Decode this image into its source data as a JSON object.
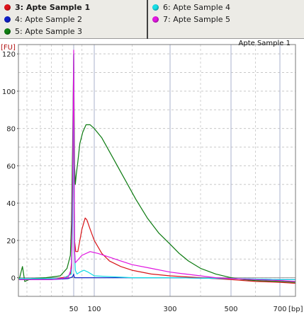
{
  "legend": {
    "items": [
      {
        "label": "3: Apte Sample 1",
        "color": "#e0141a",
        "selected": true
      },
      {
        "label": "4: Apte Sample 2",
        "color": "#1020c8",
        "selected": false
      },
      {
        "label": "5: Apte Sample 3",
        "color": "#0f7f12",
        "selected": false
      },
      {
        "label": "6: Apte Sample 4",
        "color": "#18e0e8",
        "selected": false
      },
      {
        "label": "7: Apte Sample 5",
        "color": "#e418e4",
        "selected": false
      }
    ]
  },
  "chart_data": {
    "type": "line",
    "title": "Apte Sample 1",
    "ylabel": "[FU]",
    "xlabel": "[bp]",
    "ylim": [
      -10,
      125
    ],
    "yticks": [
      0,
      20,
      40,
      60,
      80,
      100,
      120
    ],
    "xticks": [
      {
        "label": "50",
        "x": 50
      },
      {
        "label": "100",
        "x": 100
      },
      {
        "label": "300",
        "x": 300
      },
      {
        "label": "500",
        "x": 500
      },
      {
        "label": "700",
        "x": 700
      }
    ],
    "grid": true,
    "series": [
      {
        "name": "3: Apte Sample 1",
        "color": "#d81418",
        "points": [
          [
            1,
            -1
          ],
          [
            20,
            -1
          ],
          [
            35,
            -0.5
          ],
          [
            44,
            0.5
          ],
          [
            47,
            2
          ],
          [
            48,
            8
          ],
          [
            49,
            40
          ],
          [
            50,
            95
          ],
          [
            51,
            60
          ],
          [
            52,
            20
          ],
          [
            55,
            14
          ],
          [
            60,
            14
          ],
          [
            70,
            26
          ],
          [
            78,
            32
          ],
          [
            82,
            31
          ],
          [
            90,
            26
          ],
          [
            100,
            20
          ],
          [
            120,
            13
          ],
          [
            140,
            9
          ],
          [
            170,
            6
          ],
          [
            200,
            4
          ],
          [
            250,
            2
          ],
          [
            300,
            1
          ],
          [
            400,
            0
          ],
          [
            500,
            -1
          ],
          [
            600,
            -2
          ],
          [
            700,
            -2.5
          ],
          [
            775,
            -3
          ]
        ]
      },
      {
        "name": "4: Apte Sample 2",
        "color": "#1428c8",
        "points": [
          [
            1,
            -1
          ],
          [
            30,
            -1
          ],
          [
            45,
            -0.5
          ],
          [
            49,
            0.5
          ],
          [
            50,
            2
          ],
          [
            51,
            0.5
          ],
          [
            53,
            0
          ],
          [
            60,
            0
          ],
          [
            100,
            0
          ],
          [
            300,
            0
          ],
          [
            500,
            -0.5
          ],
          [
            700,
            -1
          ],
          [
            775,
            -1
          ]
        ]
      },
      {
        "name": "5: Apte Sample 3",
        "color": "#0c7a10",
        "points": [
          [
            1,
            -1
          ],
          [
            4,
            6
          ],
          [
            6,
            -2
          ],
          [
            12,
            -0.5
          ],
          [
            25,
            0
          ],
          [
            38,
            1
          ],
          [
            44,
            5
          ],
          [
            47,
            12
          ],
          [
            48,
            30
          ],
          [
            49,
            70
          ],
          [
            50,
            120
          ],
          [
            51,
            90
          ],
          [
            52,
            60
          ],
          [
            54,
            50
          ],
          [
            56,
            55
          ],
          [
            60,
            62
          ],
          [
            65,
            72
          ],
          [
            72,
            78
          ],
          [
            80,
            82
          ],
          [
            90,
            82
          ],
          [
            100,
            80
          ],
          [
            120,
            75
          ],
          [
            150,
            64
          ],
          [
            180,
            53
          ],
          [
            210,
            42
          ],
          [
            240,
            32
          ],
          [
            270,
            24
          ],
          [
            300,
            18
          ],
          [
            330,
            13
          ],
          [
            360,
            9
          ],
          [
            400,
            5
          ],
          [
            450,
            2
          ],
          [
            500,
            0
          ],
          [
            550,
            -1
          ],
          [
            600,
            -1.5
          ],
          [
            700,
            -2
          ],
          [
            775,
            -2.5
          ]
        ]
      },
      {
        "name": "6: Apte Sample 4",
        "color": "#10dce4",
        "points": [
          [
            1,
            -0.5
          ],
          [
            40,
            -0.5
          ],
          [
            48,
            2
          ],
          [
            49,
            30
          ],
          [
            50,
            120
          ],
          [
            51,
            60
          ],
          [
            52,
            15
          ],
          [
            54,
            4
          ],
          [
            58,
            2
          ],
          [
            65,
            3
          ],
          [
            75,
            4
          ],
          [
            85,
            3
          ],
          [
            100,
            1
          ],
          [
            150,
            0.5
          ],
          [
            200,
            0
          ],
          [
            300,
            0
          ],
          [
            500,
            -0.5
          ],
          [
            700,
            -1
          ],
          [
            775,
            -1
          ]
        ]
      },
      {
        "name": "7: Apte Sample 5",
        "color": "#e014e0",
        "points": [
          [
            1,
            -1
          ],
          [
            30,
            -1
          ],
          [
            45,
            0
          ],
          [
            48,
            5
          ],
          [
            49,
            50
          ],
          [
            50,
            122
          ],
          [
            51,
            70
          ],
          [
            52,
            15
          ],
          [
            54,
            8
          ],
          [
            58,
            9
          ],
          [
            70,
            12
          ],
          [
            90,
            14
          ],
          [
            110,
            13
          ],
          [
            140,
            11
          ],
          [
            170,
            9
          ],
          [
            200,
            7
          ],
          [
            250,
            5
          ],
          [
            300,
            3
          ],
          [
            350,
            2
          ],
          [
            400,
            1
          ],
          [
            450,
            0
          ],
          [
            500,
            -0.5
          ],
          [
            600,
            -1
          ],
          [
            700,
            -1.5
          ],
          [
            775,
            -2
          ]
        ]
      }
    ]
  }
}
